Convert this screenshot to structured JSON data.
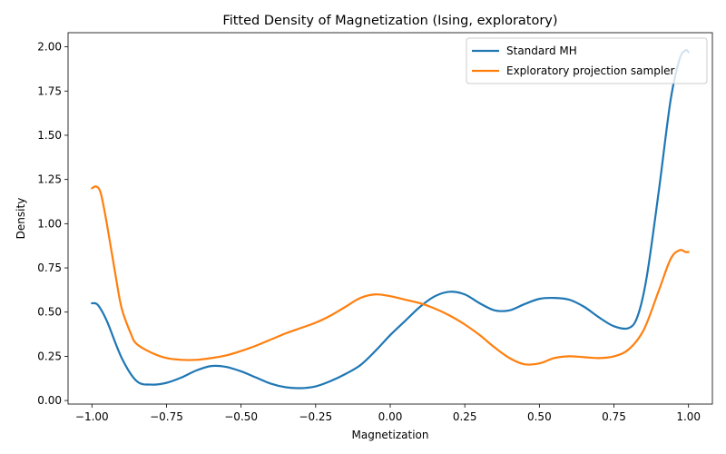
{
  "chart_data": {
    "type": "line",
    "title": "Fitted Density of Magnetization (Ising, exploratory)",
    "xlabel": "Magnetization",
    "ylabel": "Density",
    "xlim": [
      -1.08,
      1.08
    ],
    "ylim": [
      -0.02,
      2.08
    ],
    "x_ticks": [
      -1.0,
      -0.75,
      -0.5,
      -0.25,
      0.0,
      0.25,
      0.5,
      0.75,
      1.0
    ],
    "x_tick_labels": [
      "−1.00",
      "−0.75",
      "−0.50",
      "−0.25",
      "0.00",
      "0.25",
      "0.50",
      "0.75",
      "1.00"
    ],
    "y_ticks": [
      0.0,
      0.25,
      0.5,
      0.75,
      1.0,
      1.25,
      1.5,
      1.75,
      2.0
    ],
    "y_tick_labels": [
      "0.00",
      "0.25",
      "0.50",
      "0.75",
      "1.00",
      "1.25",
      "1.50",
      "1.75",
      "2.00"
    ],
    "grid": false,
    "legend_position": "top-right",
    "series": [
      {
        "name": "Standard MH",
        "color": "#1f77b4",
        "x": [
          -1.0,
          -0.98,
          -0.95,
          -0.9,
          -0.85,
          -0.8,
          -0.75,
          -0.7,
          -0.65,
          -0.6,
          -0.55,
          -0.5,
          -0.45,
          -0.4,
          -0.35,
          -0.3,
          -0.25,
          -0.2,
          -0.15,
          -0.1,
          -0.05,
          0.0,
          0.05,
          0.1,
          0.15,
          0.2,
          0.25,
          0.3,
          0.35,
          0.4,
          0.45,
          0.5,
          0.55,
          0.6,
          0.65,
          0.7,
          0.75,
          0.8,
          0.83,
          0.86,
          0.9,
          0.94,
          0.97,
          0.99,
          1.0
        ],
        "y": [
          0.55,
          0.54,
          0.45,
          0.24,
          0.11,
          0.09,
          0.1,
          0.13,
          0.17,
          0.195,
          0.19,
          0.165,
          0.13,
          0.095,
          0.075,
          0.07,
          0.08,
          0.11,
          0.15,
          0.2,
          0.28,
          0.37,
          0.45,
          0.53,
          0.59,
          0.615,
          0.6,
          0.55,
          0.51,
          0.51,
          0.545,
          0.575,
          0.58,
          0.57,
          0.53,
          0.47,
          0.42,
          0.41,
          0.48,
          0.7,
          1.18,
          1.7,
          1.93,
          1.98,
          1.97
        ]
      },
      {
        "name": "Exploratory projection sampler",
        "color": "#ff7f0e",
        "x": [
          -1.0,
          -0.985,
          -0.97,
          -0.95,
          -0.92,
          -0.9,
          -0.87,
          -0.85,
          -0.8,
          -0.75,
          -0.7,
          -0.65,
          -0.6,
          -0.55,
          -0.5,
          -0.45,
          -0.4,
          -0.35,
          -0.3,
          -0.25,
          -0.2,
          -0.15,
          -0.1,
          -0.05,
          0.0,
          0.05,
          0.1,
          0.15,
          0.2,
          0.25,
          0.3,
          0.35,
          0.4,
          0.45,
          0.5,
          0.55,
          0.6,
          0.65,
          0.7,
          0.75,
          0.8,
          0.85,
          0.9,
          0.94,
          0.97,
          0.99,
          1.0
        ],
        "y": [
          1.2,
          1.21,
          1.17,
          1.0,
          0.7,
          0.52,
          0.38,
          0.32,
          0.27,
          0.24,
          0.23,
          0.23,
          0.24,
          0.255,
          0.28,
          0.31,
          0.345,
          0.38,
          0.41,
          0.44,
          0.48,
          0.53,
          0.58,
          0.6,
          0.59,
          0.57,
          0.55,
          0.52,
          0.48,
          0.43,
          0.37,
          0.3,
          0.24,
          0.205,
          0.21,
          0.24,
          0.25,
          0.245,
          0.24,
          0.25,
          0.29,
          0.4,
          0.62,
          0.8,
          0.85,
          0.84,
          0.84
        ]
      }
    ]
  }
}
